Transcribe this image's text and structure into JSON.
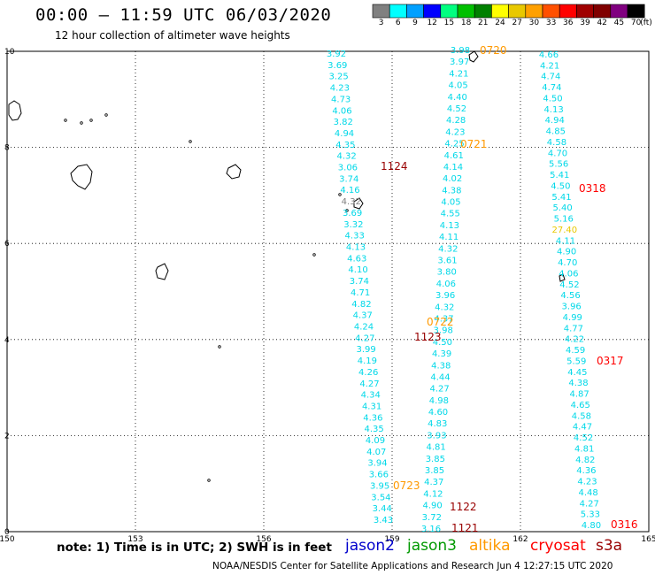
{
  "header": {
    "title": "00:00 – 11:59 UTC 06/03/2020",
    "subtitle": "12 hour collection of altimeter wave heights"
  },
  "legend": {
    "bins": [
      {
        "label": "3",
        "color": "#808080"
      },
      {
        "label": "6",
        "color": "#00ffff"
      },
      {
        "label": "9",
        "color": "#00a0ff"
      },
      {
        "label": "12",
        "color": "#0000ff"
      },
      {
        "label": "15",
        "color": "#00ff80"
      },
      {
        "label": "18",
        "color": "#00c000"
      },
      {
        "label": "21",
        "color": "#008000"
      },
      {
        "label": "24",
        "color": "#ffff00"
      },
      {
        "label": "27",
        "color": "#e8c800"
      },
      {
        "label": "30",
        "color": "#ffa000"
      },
      {
        "label": "33",
        "color": "#ff5000"
      },
      {
        "label": "36",
        "color": "#ff0000"
      },
      {
        "label": "39",
        "color": "#a00000"
      },
      {
        "label": "42",
        "color": "#800000"
      },
      {
        "label": "45",
        "color": "#800080"
      },
      {
        "label": "70",
        "color": "#000000"
      }
    ],
    "unit": "(ft)"
  },
  "axes": {
    "x_ticks": [
      "150",
      "153",
      "156",
      "159",
      "162",
      "165"
    ],
    "y_ticks": [
      "0",
      "2",
      "4",
      "6",
      "8",
      "10"
    ]
  },
  "footer": {
    "note": "note:  1) Time is in UTC;  2) SWH is in feet",
    "missions": [
      {
        "name": "jason2",
        "color": "#0000cc"
      },
      {
        "name": "jason3",
        "color": "#009900"
      },
      {
        "name": "altika",
        "color": "#ff9900"
      },
      {
        "name": "cryosat",
        "color": "#ff0000"
      },
      {
        "name": "s3a",
        "color": "#990000"
      }
    ],
    "credit": "NOAA/NESDIS Center for Satellite Applications and Research    Jun  4 12:27:15 UTC 2020"
  },
  "chart_data": {
    "type": "scatter",
    "xlim": [
      150,
      165
    ],
    "ylim": [
      0,
      10
    ],
    "grid": true,
    "wave_color": "#00d8e8",
    "tracks": [
      {
        "values": [
          "3.92",
          "3.69",
          "3.25",
          "4.23",
          "4.73",
          "4.06",
          "3.82",
          "4.94",
          "4.35",
          "4.32",
          "3.06",
          "3.74",
          "4.16",
          "4.32",
          "3.69",
          "3.32",
          "4.33",
          "4.13",
          "4.63",
          "4.10",
          "3.74",
          "4.71",
          "4.82",
          "4.37",
          "4.24",
          "4.27",
          "3.99",
          "4.19",
          "4.26",
          "4.27",
          "4.34",
          "4.31",
          "4.36",
          "4.35",
          "4.09",
          "4.07",
          "3.94",
          "3.66",
          "3.95",
          "3.54",
          "3.44",
          "3.43"
        ]
      },
      {
        "values": [
          "3.98",
          "3.97",
          "4.21",
          "4.05",
          "4.40",
          "4.52",
          "4.28",
          "4.23",
          "4.25",
          "4.61",
          "4.14",
          "4.02",
          "4.38",
          "4.05",
          "4.55",
          "4.13",
          "4.11",
          "4.32",
          "3.61",
          "3.80",
          "4.06",
          "3.96",
          "4.32",
          "4.37",
          "3.98",
          "4.50",
          "4.39",
          "4.38",
          "4.44",
          "4.27",
          "4.98",
          "4.60",
          "4.83",
          "3.93",
          "4.81",
          "3.85",
          "3.85",
          "4.37",
          "4.12",
          "4.90",
          "3.72",
          "3.16"
        ]
      },
      {
        "values": [
          "4.66",
          "4.21",
          "4.74",
          "4.74",
          "4.50",
          "4.13",
          "4.94",
          "4.85",
          "4.58",
          "4.70",
          "5.56",
          "5.41",
          "4.50",
          "5.41",
          "5.40",
          "5.16",
          "27.40",
          "4.11",
          "4.90",
          "4.70",
          "4.06",
          "4.52",
          "4.56",
          "3.96",
          "4.99",
          "4.77",
          "4.22",
          "4.59",
          "5.59",
          "4.45",
          "4.38",
          "4.87",
          "4.65",
          "4.58",
          "4.47",
          "4.52",
          "4.81",
          "4.82",
          "4.36",
          "4.23",
          "4.48",
          "4.27",
          "5.33",
          "4.80"
        ]
      }
    ],
    "time_labels": [
      {
        "text": "0720",
        "color": "#ff9900"
      },
      {
        "text": "0721",
        "color": "#ff9900"
      },
      {
        "text": "1124",
        "color": "#990000"
      },
      {
        "text": "0318",
        "color": "#ff0000"
      },
      {
        "text": "0722",
        "color": "#ff9900"
      },
      {
        "text": "1123",
        "color": "#990000"
      },
      {
        "text": "0317",
        "color": "#ff0000"
      },
      {
        "text": "0723",
        "color": "#ff9900"
      },
      {
        "text": "1122",
        "color": "#990000"
      },
      {
        "text": "1121",
        "color": "#990000"
      },
      {
        "text": "0316",
        "color": "#ff0000"
      }
    ]
  }
}
